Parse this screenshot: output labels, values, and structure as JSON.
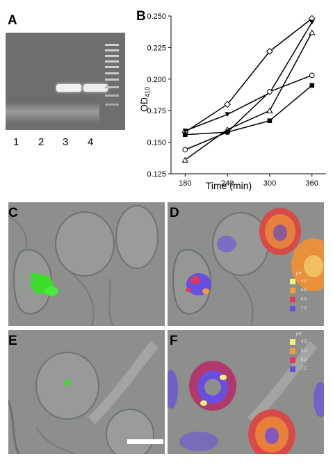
{
  "panels": {
    "a": "A",
    "b": "B",
    "c": "C",
    "d": "D",
    "e": "E",
    "f": "F"
  },
  "gel": {
    "lanes": [
      "1",
      "2",
      "3",
      "4"
    ],
    "band_present": [
      false,
      false,
      true,
      true
    ]
  },
  "chart_data": {
    "type": "line",
    "xlabel": "Time (min)",
    "ylabel_main": "OD",
    "ylabel_sub": "410",
    "x": [
      180,
      240,
      300,
      360
    ],
    "xlim": [
      160,
      380
    ],
    "ylim": [
      0.125,
      0.25
    ],
    "x_ticks": [
      "180",
      "240",
      "300",
      "360"
    ],
    "y_ticks": [
      "0.125",
      "0.150",
      "0.175",
      "0.200",
      "0.225",
      "0.250"
    ],
    "grid": false,
    "series": [
      {
        "marker": "open-diamond",
        "values": [
          0.158,
          0.18,
          0.222,
          0.248
        ]
      },
      {
        "marker": "filled-triangle-down",
        "values": [
          0.159,
          0.172,
          0.189,
          0.245
        ]
      },
      {
        "marker": "open-triangle-up",
        "values": [
          0.136,
          0.16,
          0.175,
          0.237
        ]
      },
      {
        "marker": "open-circle",
        "values": [
          0.144,
          0.158,
          0.19,
          0.203
        ]
      },
      {
        "marker": "filled-square",
        "values": [
          0.156,
          0.158,
          0.167,
          0.195
        ]
      }
    ]
  },
  "ph_legend": {
    "title": "pH",
    "items": [
      {
        "value": "4,5",
        "color": "#f4f27a"
      },
      {
        "value": "5,5",
        "color": "#f0a03a"
      },
      {
        "value": "6,5",
        "color": "#e0385a"
      },
      {
        "value": "7,5",
        "color": "#6a4ee0"
      }
    ]
  },
  "colors": {
    "gfp": "#3bdc2a",
    "micrograph_bg": "#8c8f8c",
    "gel_bg": "#6e6e6e",
    "band": "#f2f2f2"
  }
}
